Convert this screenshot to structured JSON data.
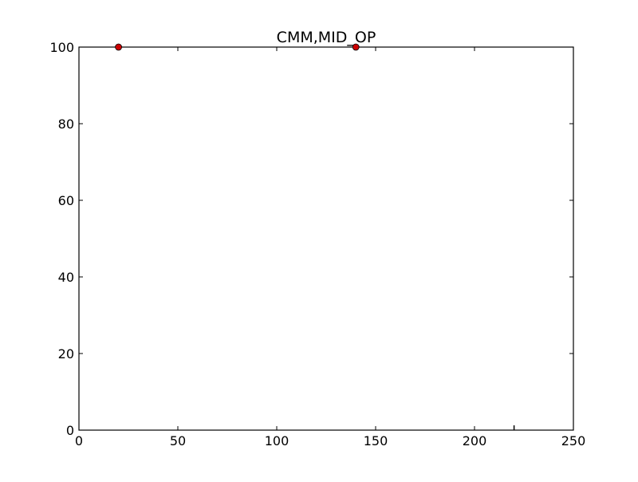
{
  "chart_data": {
    "type": "scatter",
    "title": "CMM,MID_OP",
    "xlabel": "",
    "ylabel": "",
    "xlim": [
      0,
      250
    ],
    "ylim": [
      0,
      100
    ],
    "x_ticks": [
      0,
      50,
      100,
      150,
      200,
      250
    ],
    "y_ticks": [
      0,
      20,
      40,
      60,
      80,
      100
    ],
    "grid": false,
    "series": [
      {
        "x": [
          20,
          140
        ],
        "y": [
          100,
          100
        ]
      }
    ],
    "extra_marks": [
      {
        "x": 220,
        "y": 0,
        "kind": "small-tick"
      }
    ],
    "colors": {
      "marker_fill": "#cc0000",
      "marker_edge": "#000000",
      "axis": "#000000",
      "background": "#ffffff"
    }
  }
}
